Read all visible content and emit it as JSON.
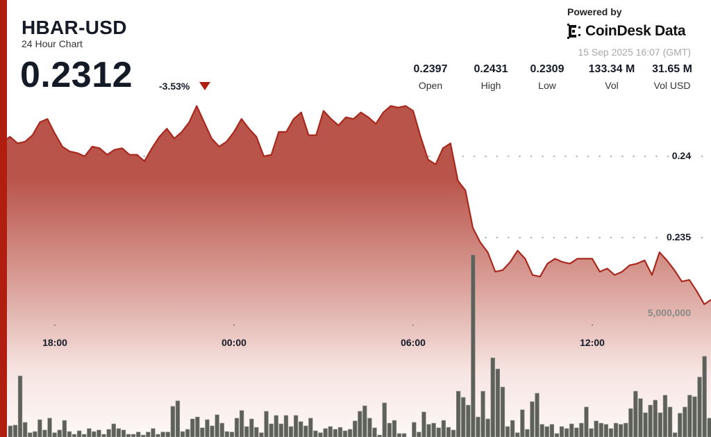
{
  "header": {
    "ticker": "HBAR-USD",
    "subtitle": "24 Hour Chart",
    "price": "0.2312",
    "change": "-3.53%",
    "change_direction": "down",
    "change_icon": "triangle-down-icon",
    "powered_by": "Powered by",
    "brand": "CoinDesk Data",
    "timestamp": "15 Sep 2025 16:07 (GMT)"
  },
  "stats": [
    {
      "value": "0.2397",
      "label": "Open"
    },
    {
      "value": "0.2431",
      "label": "High"
    },
    {
      "value": "0.2309",
      "label": "Low"
    },
    {
      "value": "133.34 M",
      "label": "Vol"
    },
    {
      "value": "31.65 M",
      "label": "Vol USD"
    }
  ],
  "colors": {
    "accent": "#b01e10",
    "line": "#a8281c",
    "fill_top": "#b9544a",
    "volume_bar": "#5e605a"
  },
  "chart_data": [
    {
      "type": "area",
      "x_ticks": [
        "18:00",
        "00:00",
        "06:00",
        "12:00"
      ],
      "y_ticks": [
        {
          "value": 0.24,
          "label": "0.24"
        },
        {
          "value": 0.235,
          "label": "0.235"
        }
      ],
      "grid": "dotted horizontal",
      "x": [
        "2025-09-14T16:30",
        "2025-09-14T16:45",
        "2025-09-14T17:00",
        "2025-09-14T17:15",
        "2025-09-14T17:30",
        "2025-09-14T17:45",
        "2025-09-14T18:00",
        "2025-09-14T18:15",
        "2025-09-14T18:30",
        "2025-09-14T18:45",
        "2025-09-14T19:00",
        "2025-09-14T19:15",
        "2025-09-14T19:30",
        "2025-09-14T19:45",
        "2025-09-14T20:00",
        "2025-09-14T20:15",
        "2025-09-14T20:30",
        "2025-09-14T20:45",
        "2025-09-14T21:00",
        "2025-09-14T21:15",
        "2025-09-14T21:30",
        "2025-09-14T21:45",
        "2025-09-14T22:00",
        "2025-09-14T22:15",
        "2025-09-14T22:30",
        "2025-09-14T22:45",
        "2025-09-14T23:00",
        "2025-09-14T23:15",
        "2025-09-14T23:30",
        "2025-09-14T23:45",
        "2025-09-15T00:00",
        "2025-09-15T00:15",
        "2025-09-15T00:30",
        "2025-09-15T00:45",
        "2025-09-15T01:00",
        "2025-09-15T01:15",
        "2025-09-15T01:30",
        "2025-09-15T01:45",
        "2025-09-15T02:00",
        "2025-09-15T02:15",
        "2025-09-15T02:30",
        "2025-09-15T02:45",
        "2025-09-15T03:00",
        "2025-09-15T03:15",
        "2025-09-15T03:30",
        "2025-09-15T03:45",
        "2025-09-15T04:00",
        "2025-09-15T04:15",
        "2025-09-15T04:30",
        "2025-09-15T04:45",
        "2025-09-15T05:00",
        "2025-09-15T05:15",
        "2025-09-15T05:30",
        "2025-09-15T05:45",
        "2025-09-15T06:00",
        "2025-09-15T06:15",
        "2025-09-15T06:30",
        "2025-09-15T06:45",
        "2025-09-15T07:00",
        "2025-09-15T07:15",
        "2025-09-15T07:30",
        "2025-09-15T07:45",
        "2025-09-15T08:00",
        "2025-09-15T08:15",
        "2025-09-15T08:30",
        "2025-09-15T08:45",
        "2025-09-15T09:00",
        "2025-09-15T09:15",
        "2025-09-15T09:30",
        "2025-09-15T09:45",
        "2025-09-15T10:00",
        "2025-09-15T10:15",
        "2025-09-15T10:30",
        "2025-09-15T10:45",
        "2025-09-15T11:00",
        "2025-09-15T11:15",
        "2025-09-15T11:30",
        "2025-09-15T11:45",
        "2025-09-15T12:00",
        "2025-09-15T12:15",
        "2025-09-15T12:30",
        "2025-09-15T12:45",
        "2025-09-15T13:00",
        "2025-09-15T13:15",
        "2025-09-15T13:30",
        "2025-09-15T13:45",
        "2025-09-15T14:00",
        "2025-09-15T14:15",
        "2025-09-15T14:30",
        "2025-09-15T14:45",
        "2025-09-15T15:00",
        "2025-09-15T15:15",
        "2025-09-15T15:30",
        "2025-09-15T15:45",
        "2025-09-15T16:00"
      ],
      "values": [
        0.2412,
        0.2408,
        0.2409,
        0.2413,
        0.2421,
        0.2423,
        0.2414,
        0.2406,
        0.2403,
        0.2402,
        0.24,
        0.2406,
        0.2405,
        0.2401,
        0.2404,
        0.2405,
        0.2401,
        0.2401,
        0.2397,
        0.2405,
        0.2412,
        0.2417,
        0.2411,
        0.2415,
        0.2421,
        0.2431,
        0.2421,
        0.2411,
        0.2406,
        0.2409,
        0.2415,
        0.2423,
        0.2417,
        0.2412,
        0.24,
        0.2401,
        0.2415,
        0.2415,
        0.2423,
        0.2427,
        0.2413,
        0.2413,
        0.2428,
        0.2423,
        0.2419,
        0.2424,
        0.2423,
        0.2427,
        0.2424,
        0.242,
        0.2427,
        0.2431,
        0.243,
        0.2431,
        0.2428,
        0.2412,
        0.2398,
        0.2395,
        0.2405,
        0.2408,
        0.2385,
        0.2379,
        0.2356,
        0.2347,
        0.2341,
        0.2329,
        0.233,
        0.2335,
        0.2342,
        0.2337,
        0.2327,
        0.2326,
        0.2334,
        0.2337,
        0.2335,
        0.2334,
        0.2337,
        0.2337,
        0.2337,
        0.2329,
        0.2331,
        0.2327,
        0.2329,
        0.2333,
        0.2334,
        0.2336,
        0.2327,
        0.2341,
        0.2336,
        0.233,
        0.2323,
        0.2324,
        0.2317,
        0.2309,
        0.2312
      ]
    },
    {
      "type": "bar",
      "unit": "millions",
      "y_ticks": [
        {
          "value": 5,
          "label": "5,000,000"
        }
      ],
      "values": [
        0.45,
        0.48,
        2.47,
        0.59,
        0.17,
        0.22,
        0.7,
        0.28,
        0.76,
        0.17,
        0.28,
        0.67,
        0.22,
        0.11,
        0.25,
        0.11,
        0.34,
        0.22,
        0.28,
        0.11,
        0.31,
        0.53,
        0.34,
        0.28,
        0.11,
        0.11,
        0.2,
        0.08,
        0.2,
        0.34,
        0.11,
        0.2,
        0.2,
        1.24,
        1.46,
        0.22,
        0.31,
        0.73,
        0.81,
        0.37,
        0.7,
        0.45,
        0.9,
        0.56,
        0.22,
        0.2,
        0.76,
        1.07,
        0.42,
        0.73,
        0.39,
        0.17,
        1.04,
        0.53,
        0.87,
        0.53,
        0.87,
        0.42,
        0.87,
        0.62,
        0.45,
        0.76,
        0.25,
        0.17,
        0.34,
        0.42,
        0.31,
        0.39,
        0.25,
        0.31,
        0.65,
        1.04,
        1.26,
        0.76,
        0.37,
        0.08,
        1.38,
        0.56,
        0.67,
        0.14,
        0.14,
        0,
        0.59,
        0.2,
        1.01,
        0.51,
        0.56,
        0.37,
        0.67,
        0.39,
        0.28,
        1.85,
        1.6,
        1.29,
        7.36,
        0.81,
        1.85,
        0.73,
        3.2,
        2.75,
        2.02,
        0.42,
        0.67,
        0.17,
        1.1,
        0.31,
        1.43,
        1.77,
        0.51,
        0.42,
        0.51,
        0.14,
        0.42,
        0.34,
        0.53,
        0.37,
        0.56,
        1.21,
        0.34,
        0.65,
        0.56,
        0.51,
        0.34,
        0.56,
        0.51,
        0.56,
        1.15,
        1.85,
        1.55,
        0.98,
        1.29,
        1.49,
        0.98,
        1.69,
        1.21,
        0.17,
        0.96,
        1.21,
        1.69,
        1.63,
        2.42,
        3.26,
        0.76
      ]
    }
  ]
}
